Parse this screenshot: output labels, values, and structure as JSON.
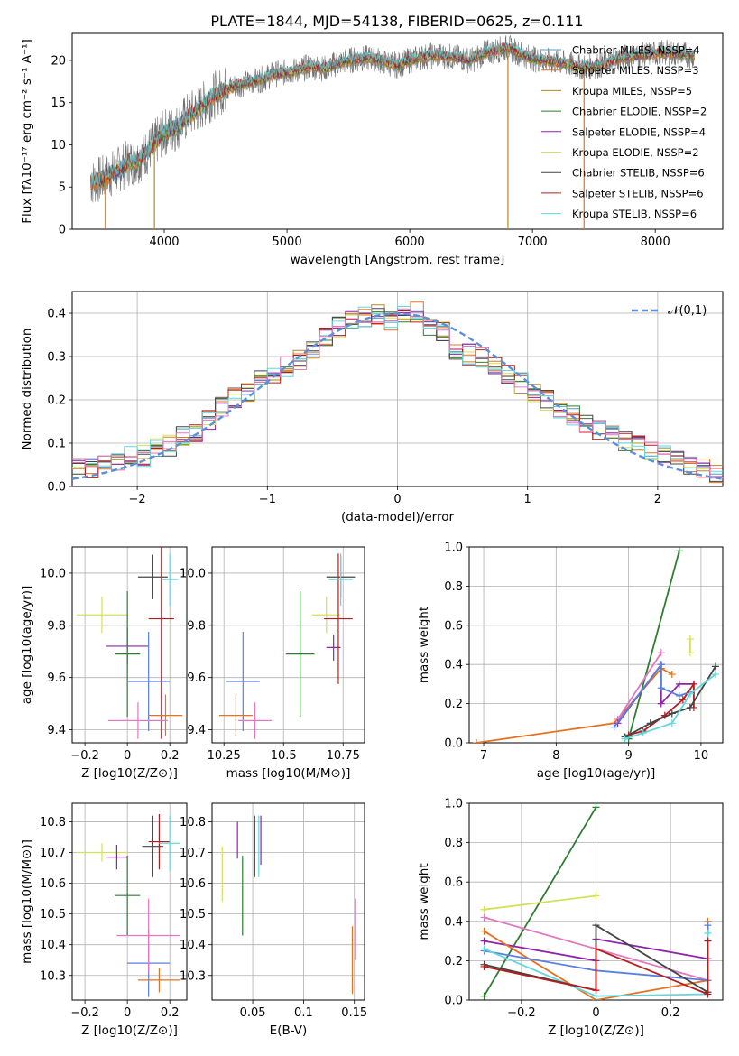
{
  "figure": {
    "title": "PLATE=1844, MJD=54138, FIBERID=0625, z=0.111"
  },
  "colors": {
    "chabrier_miles": "#4f9ec4",
    "salpeter_miles": "#e8711f",
    "kroupa_miles": "#b8862b",
    "chabrier_elodie": "#2e7d32",
    "salpeter_elodie": "#8e24aa",
    "kroupa_elodie": "#d4e157",
    "chabrier_stelib": "#444444",
    "salpeter_stelib": "#b71c1c",
    "kroupa_stelib": "#62d7dc",
    "gauss": "#5b8fdc",
    "blue_model": "#5b7fe0",
    "pink_model": "#e377c2",
    "green_model": "#4e8a5c",
    "orange_model": "#e8711f"
  },
  "chart_data": [
    {
      "id": "spectrum",
      "type": "line",
      "title": "PLATE=1844, MJD=54138, FIBERID=0625, z=0.111",
      "xlabel": "wavelength [Angstrom, rest frame]",
      "ylabel": "Flux [fλ10⁻¹⁷ erg cm⁻² s⁻¹ A⁻¹]",
      "xlim": [
        3250,
        8550
      ],
      "ylim": [
        0,
        23.2
      ],
      "x_ticks": [
        4000,
        5000,
        6000,
        7000,
        8000
      ],
      "y_ticks": [
        0,
        5,
        10,
        15,
        20
      ],
      "grid": false,
      "legend_position": "top-right",
      "legend": [
        "Chabrier MILES, NSSP=4",
        "Salpeter MILES, NSSP=3",
        "Kroupa MILES, NSSP=5",
        "Chabrier ELODIE, NSSP=2",
        "Salpeter ELODIE, NSSP=4",
        "Kroupa ELODIE, NSSP=2",
        "Chabrier STELIB, NSSP=6",
        "Salpeter STELIB, NSSP=6",
        "Kroupa STELIB, NSSP=6"
      ],
      "data_curve": {
        "x": [
          3400,
          3500,
          3600,
          3700,
          3800,
          3900,
          4000,
          4100,
          4200,
          4300,
          4400,
          4500,
          4600,
          4700,
          4800,
          4900,
          5000,
          5100,
          5200,
          5300,
          5400,
          5500,
          5600,
          5700,
          5800,
          5900,
          6000,
          6100,
          6200,
          6300,
          6400,
          6500,
          6600,
          6700,
          6800,
          6900,
          7000,
          7100,
          7200,
          7300,
          7400,
          7500,
          7600,
          7700,
          7800,
          7900,
          8000,
          8100,
          8200,
          8300
        ],
        "y": [
          5.5,
          6.0,
          6.8,
          7.8,
          8.3,
          9.8,
          11.5,
          12.0,
          13.5,
          14.5,
          15.8,
          16.6,
          17.1,
          17.4,
          17.8,
          18.4,
          18.6,
          18.9,
          19.3,
          19.0,
          19.6,
          20.0,
          20.2,
          20.3,
          19.8,
          19.4,
          20.0,
          20.4,
          20.6,
          20.5,
          20.3,
          20.0,
          20.8,
          21.2,
          21.5,
          20.8,
          20.2,
          20.0,
          19.8,
          19.5,
          19.2,
          19.3,
          19.6,
          20.2,
          20.5,
          20.6,
          20.8,
          20.9,
          20.7,
          20.6
        ]
      }
    },
    {
      "id": "residuals",
      "type": "line",
      "xlabel": "(data-model)/error",
      "ylabel": "Normed distribution",
      "xlim": [
        -2.5,
        2.5
      ],
      "ylim": [
        0,
        0.45
      ],
      "x_ticks": [
        -2,
        -1,
        0,
        1,
        2
      ],
      "y_ticks": [
        0.0,
        0.1,
        0.2,
        0.3,
        0.4
      ],
      "grid": true,
      "legend_position": "top-right",
      "legend": [
        "𝒩(0,1)"
      ],
      "hist_centers": [
        -2.45,
        -2.35,
        -2.25,
        -2.15,
        -2.05,
        -1.95,
        -1.85,
        -1.75,
        -1.65,
        -1.55,
        -1.45,
        -1.35,
        -1.25,
        -1.15,
        -1.05,
        -0.95,
        -0.85,
        -0.75,
        -0.65,
        -0.55,
        -0.45,
        -0.35,
        -0.25,
        -0.15,
        -0.05,
        0.05,
        0.15,
        0.25,
        0.35,
        0.45,
        0.55,
        0.65,
        0.75,
        0.85,
        0.95,
        1.05,
        1.15,
        1.25,
        1.35,
        1.45,
        1.55,
        1.65,
        1.75,
        1.85,
        1.95,
        2.05,
        2.15,
        2.25,
        2.35,
        2.45
      ],
      "hist_values": [
        0.048,
        0.041,
        0.055,
        0.062,
        0.068,
        0.07,
        0.085,
        0.095,
        0.118,
        0.125,
        0.152,
        0.185,
        0.205,
        0.22,
        0.245,
        0.262,
        0.275,
        0.29,
        0.318,
        0.35,
        0.368,
        0.382,
        0.392,
        0.398,
        0.382,
        0.395,
        0.402,
        0.372,
        0.358,
        0.318,
        0.305,
        0.3,
        0.285,
        0.258,
        0.238,
        0.22,
        0.2,
        0.178,
        0.162,
        0.145,
        0.132,
        0.118,
        0.105,
        0.092,
        0.08,
        0.07,
        0.058,
        0.05,
        0.042,
        0.03
      ]
    },
    {
      "id": "age_vs_Z",
      "type": "scatter",
      "xlabel": "Z [log10(Z/Z⊙)]",
      "ylabel": "age  [log10(age/yr)]",
      "xlim": [
        -0.26,
        0.28
      ],
      "ylim": [
        9.35,
        10.1
      ],
      "x_ticks": [
        -0.2,
        0.0,
        0.2
      ],
      "y_ticks": [
        9.4,
        9.6,
        9.8,
        10.0
      ],
      "grid": true,
      "points": [
        {
          "x": -0.12,
          "y": 9.84,
          "xerr": 0.12,
          "yerr": 0.07,
          "color": "kroupa_elodie"
        },
        {
          "x": 0.0,
          "y": 9.72,
          "xerr": 0.1,
          "yerr": 0.07,
          "color": "salpeter_elodie"
        },
        {
          "x": 0.0,
          "y": 9.69,
          "xerr": 0.06,
          "yerr": 0.24,
          "color": "chabrier_elodie"
        },
        {
          "x": 0.12,
          "y": 9.985,
          "xerr": 0.07,
          "yerr": 0.085,
          "color": "chabrier_stelib"
        },
        {
          "x": 0.16,
          "y": 9.825,
          "xerr": 0.06,
          "yerr": 0.46,
          "color": "salpeter_stelib"
        },
        {
          "x": 0.1,
          "y": 9.585,
          "xerr": 0.1,
          "yerr": 0.19,
          "color": "blue_model"
        },
        {
          "x": 0.18,
          "y": 9.455,
          "xerr": 0.08,
          "yerr": 0.08,
          "color": "orange_model"
        },
        {
          "x": 0.05,
          "y": 9.435,
          "xerr": 0.14,
          "yerr": 0.07,
          "color": "pink_model"
        },
        {
          "x": 0.2,
          "y": 9.975,
          "xerr": 0.04,
          "yerr": 0.1,
          "color": "kroupa_stelib"
        }
      ]
    },
    {
      "id": "age_vs_mass",
      "type": "scatter",
      "xlabel": "mass [log10(M/M⊙)]",
      "ylabel": "",
      "xlim": [
        10.2,
        10.84
      ],
      "ylim": [
        9.35,
        10.1
      ],
      "x_ticks": [
        10.25,
        10.5,
        10.75
      ],
      "y_ticks": [
        9.4,
        9.6,
        9.8,
        10.0
      ],
      "grid": true,
      "points": [
        {
          "x": 10.68,
          "y": 9.84,
          "xerr": 0.06,
          "yerr": 0.07,
          "color": "kroupa_elodie"
        },
        {
          "x": 10.57,
          "y": 9.69,
          "xerr": 0.06,
          "yerr": 0.24,
          "color": "chabrier_elodie"
        },
        {
          "x": 10.71,
          "y": 9.715,
          "xerr": 0.03,
          "yerr": 0.05,
          "color": "salpeter_elodie"
        },
        {
          "x": 10.74,
          "y": 9.985,
          "xerr": 0.06,
          "yerr": 0.08,
          "color": "chabrier_stelib"
        },
        {
          "x": 10.73,
          "y": 9.825,
          "xerr": 0.06,
          "yerr": 0.25,
          "color": "salpeter_stelib"
        },
        {
          "x": 10.33,
          "y": 9.585,
          "xerr": 0.07,
          "yerr": 0.19,
          "color": "blue_model"
        },
        {
          "x": 10.3,
          "y": 9.455,
          "xerr": 0.07,
          "yerr": 0.08,
          "color": "orange_model"
        },
        {
          "x": 10.38,
          "y": 9.435,
          "xerr": 0.07,
          "yerr": 0.07,
          "color": "pink_model"
        },
        {
          "x": 10.74,
          "y": 9.975,
          "xerr": 0.05,
          "yerr": 0.1,
          "color": "kroupa_stelib"
        }
      ]
    },
    {
      "id": "weight_vs_age",
      "type": "line",
      "xlabel": "age  [log10(age/yr)]",
      "ylabel": "mass weight",
      "xlim": [
        6.8,
        10.3
      ],
      "ylim": [
        0,
        1.0
      ],
      "x_ticks": [
        7,
        8,
        9,
        10
      ],
      "y_ticks": [
        0.0,
        0.2,
        0.4,
        0.6,
        0.8,
        1.0
      ],
      "grid": true,
      "series": [
        {
          "color": "chabrier_elodie",
          "x": [
            9.0,
            9.7
          ],
          "y": [
            0.02,
            0.98
          ]
        },
        {
          "color": "orange_model",
          "x": [
            6.9,
            8.8,
            9.45,
            9.6
          ],
          "y": [
            0.0,
            0.1,
            0.38,
            0.35
          ]
        },
        {
          "color": "pink_model",
          "x": [
            8.85,
            9.45
          ],
          "y": [
            0.12,
            0.46
          ]
        },
        {
          "color": "salpeter_elodie",
          "x": [
            8.85,
            9.45,
            9.45,
            9.7,
            9.9
          ],
          "y": [
            0.1,
            0.4,
            0.2,
            0.3,
            0.3
          ]
        },
        {
          "color": "blue_model",
          "x": [
            8.8,
            9.45,
            9.45,
            9.7,
            9.85
          ],
          "y": [
            0.08,
            0.4,
            0.28,
            0.24,
            0.26
          ]
        },
        {
          "color": "salpeter_stelib",
          "x": [
            9.0,
            9.2,
            9.5,
            9.75,
            9.9,
            9.9
          ],
          "y": [
            0.04,
            0.06,
            0.14,
            0.22,
            0.3,
            0.18
          ]
        },
        {
          "color": "chabrier_stelib",
          "x": [
            8.95,
            9.3,
            9.6,
            9.85,
            10.2
          ],
          "y": [
            0.03,
            0.1,
            0.15,
            0.18,
            0.39
          ]
        },
        {
          "color": "kroupa_stelib",
          "x": [
            8.95,
            9.2,
            9.6,
            9.85,
            10.2
          ],
          "y": [
            0.02,
            0.05,
            0.1,
            0.25,
            0.35
          ]
        },
        {
          "color": "kroupa_elodie",
          "x": [
            9.85,
            9.85
          ],
          "y": [
            0.46,
            0.53
          ]
        }
      ]
    },
    {
      "id": "mass_vs_Z",
      "type": "scatter",
      "xlabel": "Z [log10(Z/Z⊙)]",
      "ylabel": "mass [log10(M/M⊙)]",
      "xlim": [
        -0.26,
        0.28
      ],
      "ylim": [
        10.22,
        10.86
      ],
      "x_ticks": [
        -0.2,
        0.0,
        0.2
      ],
      "y_ticks": [
        10.3,
        10.4,
        10.5,
        10.6,
        10.7,
        10.8
      ],
      "grid": true,
      "points": [
        {
          "x": -0.12,
          "y": 10.7,
          "xerr": 0.12,
          "yerr": 0.03,
          "color": "kroupa_elodie"
        },
        {
          "x": -0.05,
          "y": 10.685,
          "xerr": 0.05,
          "yerr": 0.04,
          "color": "salpeter_elodie"
        },
        {
          "x": 0.0,
          "y": 10.56,
          "xerr": 0.06,
          "yerr": 0.13,
          "color": "chabrier_elodie"
        },
        {
          "x": 0.12,
          "y": 10.72,
          "xerr": 0.05,
          "yerr": 0.1,
          "color": "chabrier_stelib"
        },
        {
          "x": 0.15,
          "y": 10.735,
          "xerr": 0.05,
          "yerr": 0.09,
          "color": "salpeter_stelib"
        },
        {
          "x": 0.1,
          "y": 10.34,
          "xerr": 0.1,
          "yerr": 0.11,
          "color": "blue_model"
        },
        {
          "x": 0.15,
          "y": 10.285,
          "xerr": 0.1,
          "yerr": 0.04,
          "color": "orange_model"
        },
        {
          "x": 0.1,
          "y": 10.43,
          "xerr": 0.15,
          "yerr": 0.12,
          "color": "pink_model"
        },
        {
          "x": 0.2,
          "y": 10.73,
          "xerr": 0.05,
          "yerr": 0.09,
          "color": "kroupa_stelib"
        }
      ]
    },
    {
      "id": "mass_vs_ebv",
      "type": "scatter",
      "xlabel": "E(B-V)",
      "ylabel": "",
      "xlim": [
        0.01,
        0.16
      ],
      "ylim": [
        10.22,
        10.86
      ],
      "x_ticks": [
        0.05,
        0.1,
        0.15
      ],
      "y_ticks": [
        10.3,
        10.4,
        10.5,
        10.6,
        10.7,
        10.8
      ],
      "grid": true,
      "points": [
        {
          "x": 0.02,
          "y": 10.63,
          "yerr": 0.09,
          "color": "kroupa_elodie"
        },
        {
          "x": 0.035,
          "y": 10.74,
          "yerr": 0.06,
          "color": "salpeter_elodie"
        },
        {
          "x": 0.04,
          "y": 10.56,
          "yerr": 0.13,
          "color": "chabrier_elodie"
        },
        {
          "x": 0.052,
          "y": 10.72,
          "yerr": 0.1,
          "color": "chabrier_stelib"
        },
        {
          "x": 0.056,
          "y": 10.72,
          "yerr": 0.1,
          "color": "kroupa_stelib"
        },
        {
          "x": 0.058,
          "y": 10.74,
          "yerr": 0.08,
          "color": "salpeter_elodie"
        },
        {
          "x": 0.148,
          "y": 10.35,
          "yerr": 0.11,
          "color": "orange_model"
        },
        {
          "x": 0.151,
          "y": 10.45,
          "yerr": 0.1,
          "color": "pink_model"
        }
      ]
    },
    {
      "id": "weight_vs_Z",
      "type": "line",
      "xlabel": "Z [log10(Z/Z⊙)]",
      "ylabel": "mass weight",
      "xlim": [
        -0.34,
        0.34
      ],
      "ylim": [
        0,
        1.0
      ],
      "x_ticks": [
        -0.2,
        0.0,
        0.2
      ],
      "y_ticks": [
        0.0,
        0.2,
        0.4,
        0.6,
        0.8,
        1.0
      ],
      "grid": true,
      "series": [
        {
          "color": "chabrier_elodie",
          "x": [
            -0.3,
            0.0
          ],
          "y": [
            0.02,
            0.98
          ]
        },
        {
          "color": "kroupa_elodie",
          "x": [
            -0.3,
            0.0
          ],
          "y": [
            0.46,
            0.53
          ]
        },
        {
          "color": "pink_model",
          "x": [
            -0.3,
            0.3
          ],
          "y": [
            0.42,
            0.1
          ]
        },
        {
          "color": "salpeter_elodie",
          "x": [
            -0.3,
            0.0,
            0.0,
            0.3
          ],
          "y": [
            0.3,
            0.2,
            0.31,
            0.21
          ]
        },
        {
          "color": "orange_model",
          "x": [
            -0.3,
            0.0,
            0.3,
            0.3
          ],
          "y": [
            0.35,
            0.0,
            0.1,
            0.4
          ]
        },
        {
          "color": "blue_model",
          "x": [
            -0.3,
            0.0,
            0.3,
            0.3
          ],
          "y": [
            0.25,
            0.15,
            0.1,
            0.38
          ]
        },
        {
          "color": "kroupa_stelib",
          "x": [
            -0.3,
            0.0,
            0.3,
            0.3
          ],
          "y": [
            0.26,
            0.02,
            0.03,
            0.34
          ]
        },
        {
          "color": "chabrier_stelib",
          "x": [
            -0.3,
            0.0,
            0.0,
            0.3
          ],
          "y": [
            0.18,
            0.05,
            0.38,
            0.04
          ]
        },
        {
          "color": "salpeter_stelib",
          "x": [
            -0.3,
            0.0,
            0.0,
            0.3,
            0.3
          ],
          "y": [
            0.17,
            0.05,
            0.26,
            0.03,
            0.3
          ]
        }
      ]
    }
  ]
}
